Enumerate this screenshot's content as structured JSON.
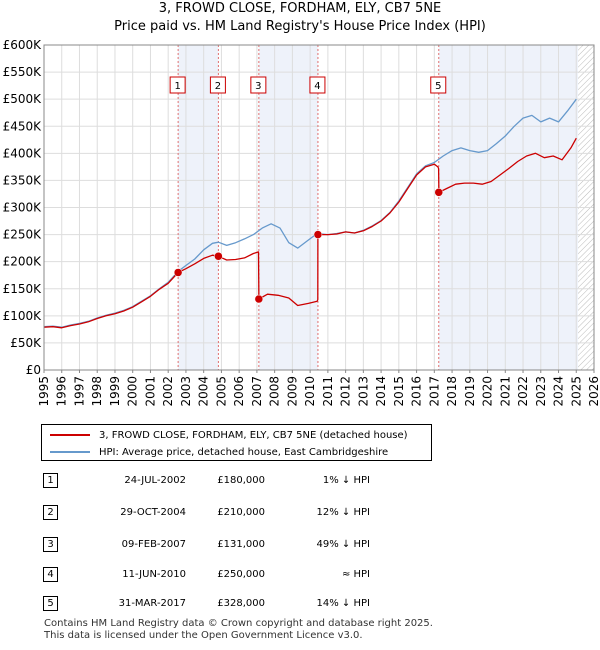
{
  "chart_data": {
    "type": "line",
    "title": "3, FROWD CLOSE, FORDHAM, ELY, CB7 5NE",
    "subtitle": "Price paid vs. HM Land Registry's House Price Index (HPI)",
    "xlim": [
      1995,
      2026
    ],
    "ylim": [
      0,
      600000
    ],
    "x_ticks": [
      "1995",
      "1996",
      "1997",
      "1998",
      "1999",
      "2000",
      "2001",
      "2002",
      "2003",
      "2004",
      "2005",
      "2006",
      "2007",
      "2008",
      "2009",
      "2010",
      "2011",
      "2012",
      "2013",
      "2014",
      "2015",
      "2016",
      "2017",
      "2018",
      "2019",
      "2020",
      "2021",
      "2022",
      "2023",
      "2024",
      "2025",
      "2026"
    ],
    "y_ticks": [
      {
        "value": 0,
        "label": "£0"
      },
      {
        "value": 50000,
        "label": "£50K"
      },
      {
        "value": 100000,
        "label": "£100K"
      },
      {
        "value": 150000,
        "label": "£150K"
      },
      {
        "value": 200000,
        "label": "£200K"
      },
      {
        "value": 250000,
        "label": "£250K"
      },
      {
        "value": 300000,
        "label": "£300K"
      },
      {
        "value": 350000,
        "label": "£350K"
      },
      {
        "value": 400000,
        "label": "£400K"
      },
      {
        "value": 450000,
        "label": "£450K"
      },
      {
        "value": 500000,
        "label": "£500K"
      },
      {
        "value": 550000,
        "label": "£550K"
      },
      {
        "value": 600000,
        "label": "£600K"
      }
    ],
    "forecast_start": 2025.1,
    "series": [
      {
        "name": "3, FROWD CLOSE, FORDHAM, ELY, CB7 5NE (detached house)",
        "color": "#cc0000",
        "x": [
          1995.0,
          1995.5,
          1996.0,
          1996.5,
          1997.0,
          1997.5,
          1998.0,
          1998.5,
          1999.0,
          1999.5,
          2000.0,
          2000.5,
          2001.0,
          2001.5,
          2002.0,
          2002.56,
          2003.0,
          2003.5,
          2004.0,
          2004.5,
          2004.83,
          2005.3,
          2005.8,
          2006.3,
          2006.8,
          2007.09,
          2007.11,
          2007.6,
          2008.2,
          2008.8,
          2009.3,
          2009.9,
          2010.4,
          2010.43,
          2010.44,
          2011.0,
          2011.5,
          2012.0,
          2012.5,
          2013.0,
          2013.5,
          2014.0,
          2014.5,
          2015.0,
          2015.5,
          2016.0,
          2016.5,
          2017.0,
          2017.2,
          2017.24,
          2017.26,
          2017.7,
          2018.2,
          2018.7,
          2019.2,
          2019.7,
          2020.2,
          2020.7,
          2021.2,
          2021.7,
          2022.2,
          2022.7,
          2023.2,
          2023.7,
          2024.2,
          2024.7,
          2025.0
        ],
        "values": [
          79000,
          80000,
          78000,
          82000,
          85000,
          89000,
          95000,
          100000,
          104000,
          109000,
          116000,
          126000,
          136000,
          149000,
          160000,
          180000,
          187000,
          196000,
          206000,
          212000,
          210000,
          203000,
          204000,
          207000,
          215000,
          218000,
          131000,
          140000,
          138000,
          133000,
          119000,
          123000,
          127000,
          130000,
          250000,
          250000,
          251000,
          255000,
          253000,
          257000,
          265000,
          275000,
          290000,
          310000,
          335000,
          360000,
          375000,
          380000,
          375000,
          372000,
          328000,
          335000,
          343000,
          345000,
          345000,
          343000,
          348000,
          360000,
          372000,
          385000,
          395000,
          400000,
          392000,
          395000,
          388000,
          410000,
          428000
        ]
      },
      {
        "name": "HPI: Average price, detached house, East Cambridgeshire",
        "color": "#6699cc",
        "x": [
          1995.0,
          1995.5,
          1996.0,
          1996.5,
          1997.0,
          1997.5,
          1998.0,
          1998.5,
          1999.0,
          1999.5,
          2000.0,
          2000.5,
          2001.0,
          2001.5,
          2002.0,
          2002.56,
          2003.0,
          2003.5,
          2004.0,
          2004.5,
          2004.83,
          2005.3,
          2005.8,
          2006.3,
          2006.8,
          2007.3,
          2007.8,
          2008.3,
          2008.8,
          2009.3,
          2009.9,
          2010.4,
          2011.0,
          2011.5,
          2012.0,
          2012.5,
          2013.0,
          2013.5,
          2014.0,
          2014.5,
          2015.0,
          2015.5,
          2016.0,
          2016.5,
          2017.0,
          2017.5,
          2018.0,
          2018.5,
          2019.0,
          2019.5,
          2020.0,
          2020.5,
          2021.0,
          2021.5,
          2022.0,
          2022.5,
          2023.0,
          2023.5,
          2024.0,
          2024.5,
          2025.0
        ],
        "values": [
          80000,
          81000,
          79000,
          83000,
          86000,
          90000,
          96000,
          101000,
          105000,
          110000,
          117000,
          127000,
          137000,
          150000,
          162000,
          182000,
          193000,
          205000,
          222000,
          234000,
          236000,
          230000,
          235000,
          242000,
          250000,
          262000,
          270000,
          262000,
          235000,
          225000,
          240000,
          252000,
          250000,
          252000,
          255000,
          253000,
          258000,
          266000,
          276000,
          291000,
          312000,
          337000,
          362000,
          377000,
          383000,
          395000,
          405000,
          410000,
          405000,
          402000,
          405000,
          418000,
          432000,
          450000,
          465000,
          470000,
          458000,
          465000,
          458000,
          478000,
          500000
        ]
      }
    ],
    "sales": [
      {
        "id": "1",
        "year": 2002.56,
        "price": 180000,
        "date": "24-JUL-2002",
        "price_label": "£180,000",
        "hpi": "1% ↓ HPI"
      },
      {
        "id": "2",
        "year": 2004.83,
        "price": 210000,
        "date": "29-OCT-2004",
        "price_label": "£210,000",
        "hpi": "12% ↓ HPI"
      },
      {
        "id": "3",
        "year": 2007.11,
        "price": 131000,
        "date": "09-FEB-2007",
        "price_label": "£131,000",
        "hpi": "49% ↓ HPI"
      },
      {
        "id": "4",
        "year": 2010.44,
        "price": 250000,
        "date": "11-JUN-2010",
        "price_label": "£250,000",
        "hpi": "≈ HPI"
      },
      {
        "id": "5",
        "year": 2017.25,
        "price": 328000,
        "date": "31-MAR-2017",
        "price_label": "£328,000",
        "hpi": "14% ↓ HPI"
      }
    ]
  },
  "legend": {
    "items": [
      {
        "label": "3, FROWD CLOSE, FORDHAM, ELY, CB7 5NE (detached house)",
        "color": "#cc0000"
      },
      {
        "label": "HPI: Average price, detached house, East Cambridgeshire",
        "color": "#6699cc"
      }
    ]
  },
  "footer": {
    "line1": "Contains HM Land Registry data © Crown copyright and database right 2025.",
    "line2": "This data is licensed under the Open Government Licence v3.0."
  }
}
